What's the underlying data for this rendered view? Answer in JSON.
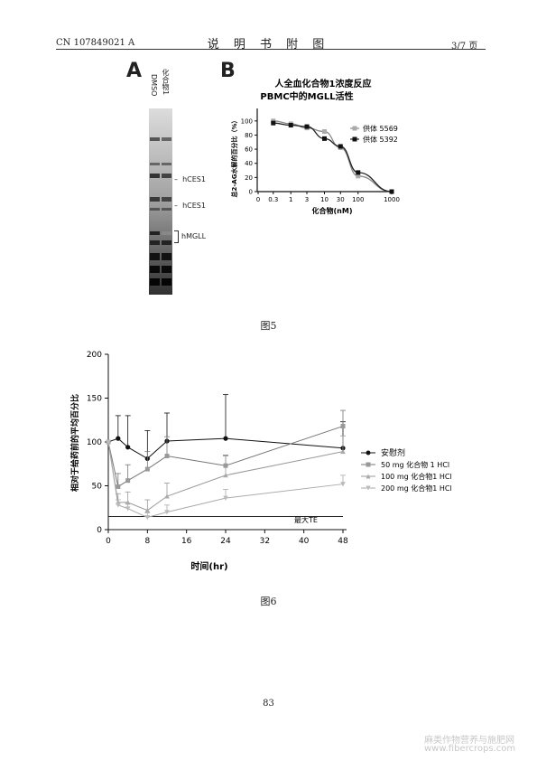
{
  "header": {
    "patent_no": "CN 107849021 A",
    "title": "说 明 书 附 图",
    "page_fraction": "3/7 页"
  },
  "figure5": {
    "panel_a": {
      "letter": "A",
      "lanes": [
        "DMSO",
        "化合物1"
      ],
      "band_labels": [
        "hCES1",
        "hCES1",
        "hMGLL"
      ]
    },
    "panel_b": {
      "letter": "B",
      "title_line1": "人全血化合物1浓度反应",
      "title_line2": "PBMC中的MGLL活性",
      "ylabel": "总2-AG水解的百分比（%）",
      "xlabel": "化合物(nM)",
      "legend": [
        "供体 5569",
        "供体 5392"
      ]
    },
    "caption": "图5"
  },
  "figure6": {
    "caption": "图6",
    "ylabel": "相对于给药前的平均百分比",
    "xlabel": "时间(hr)",
    "ref_label": "最大TE",
    "legend": [
      "安慰剂",
      "50 mg 化合物 1 HCl",
      "100 mg 化合物1 HCl",
      "200 mg 化合物1 HCl"
    ]
  },
  "page_number": "83",
  "watermark": {
    "line1": "麻类作物营养与施肥网",
    "line2": "www.fibercrops.com"
  },
  "chart_data": [
    {
      "type": "line",
      "x_scale": "log",
      "x_ticks": [
        "0",
        "0.3",
        "1",
        "3",
        "10",
        "30",
        "100",
        "1000"
      ],
      "y_ticks": [
        0,
        20,
        40,
        60,
        80,
        100
      ],
      "ylim": [
        0,
        110
      ],
      "series": [
        {
          "name": "供体 5569",
          "x": [
            0.3,
            1,
            3,
            10,
            30,
            100,
            1000
          ],
          "y": [
            100,
            96,
            90,
            85,
            62,
            22,
            0
          ]
        },
        {
          "name": "供体 5392",
          "x": [
            0.3,
            1,
            3,
            10,
            30,
            100,
            1000
          ],
          "y": [
            97,
            94,
            92,
            75,
            64,
            27,
            0
          ]
        }
      ]
    },
    {
      "type": "line",
      "x_ticks": [
        0,
        8,
        16,
        24,
        32,
        40,
        48
      ],
      "y_ticks": [
        0,
        50,
        100,
        150,
        200
      ],
      "xlim": [
        0,
        48
      ],
      "ylim": [
        0,
        200
      ],
      "reference_line": 15,
      "series": [
        {
          "name": "安慰剂",
          "x": [
            0,
            2,
            4,
            8,
            12,
            24,
            48
          ],
          "y": [
            100,
            104,
            94,
            81,
            101,
            104,
            93
          ],
          "err": [
            0,
            26,
            36,
            32,
            32,
            50,
            30
          ]
        },
        {
          "name": "50 mg 化合物 1 HCl",
          "x": [
            0,
            2,
            4,
            8,
            12,
            24,
            48
          ],
          "y": [
            100,
            49,
            56,
            69,
            84,
            73,
            118
          ],
          "err": [
            0,
            15,
            18,
            20,
            22,
            12,
            18
          ]
        },
        {
          "name": "100 mg 化合物1 HCl",
          "x": [
            0,
            2,
            4,
            8,
            12,
            24,
            48
          ],
          "y": [
            100,
            31,
            31,
            22,
            38,
            62,
            89
          ],
          "err": [
            0,
            10,
            12,
            12,
            15,
            22,
            18
          ]
        },
        {
          "name": "200 mg 化合物1 HCl",
          "x": [
            0,
            2,
            4,
            8,
            12,
            24,
            48
          ],
          "y": [
            100,
            28,
            24,
            14,
            20,
            36,
            52
          ],
          "err": [
            0,
            6,
            6,
            5,
            8,
            10,
            10
          ]
        }
      ]
    }
  ]
}
